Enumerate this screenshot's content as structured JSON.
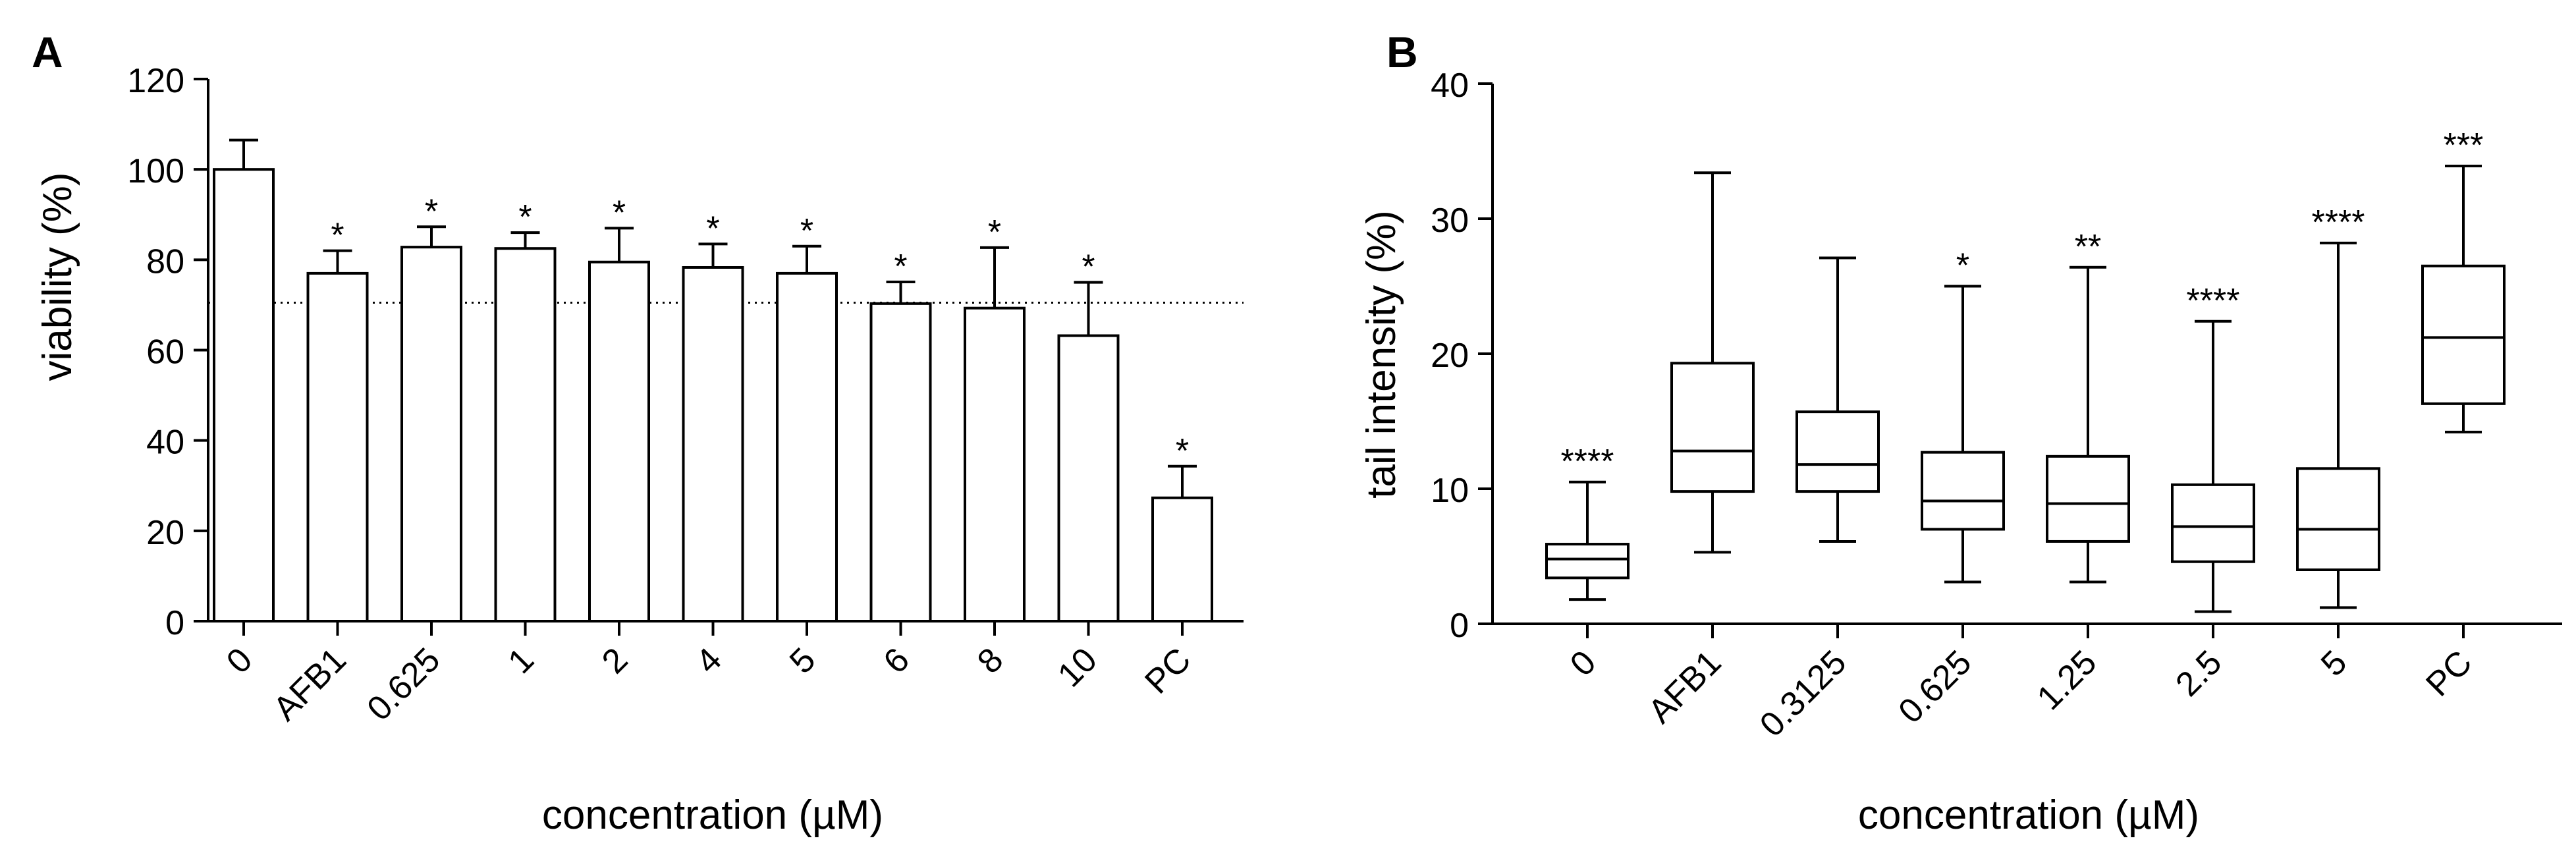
{
  "chart_data": [
    {
      "panel_label": "A",
      "type": "bar",
      "categories": [
        "0",
        "AFB1",
        "0.625",
        "1",
        "2",
        "4",
        "5",
        "6",
        "8",
        "10",
        "PC"
      ],
      "values": [
        100,
        77,
        82.8,
        82.5,
        79.5,
        78.3,
        77,
        70.3,
        69.3,
        63.2,
        27.3
      ],
      "errors": [
        6.5,
        5,
        4.5,
        3.5,
        7.5,
        5.2,
        6,
        4.8,
        13.4,
        11.8,
        7
      ],
      "significance": [
        "",
        "*",
        "*",
        "*",
        "*",
        "*",
        "*",
        "*",
        "*",
        "*",
        "*"
      ],
      "threshold": 70.5,
      "xlabel": "concentration (µM)",
      "ylabel": "viability (%)",
      "ylim": [
        0,
        120
      ],
      "yticks": [
        "0",
        "20",
        "40",
        "60",
        "80",
        "100",
        "120"
      ],
      "colors": {
        "bar_fill": "#ffffff",
        "stroke": "#000000"
      }
    },
    {
      "panel_label": "B",
      "type": "box",
      "categories": [
        "0",
        "AFB1",
        "0.3125",
        "0.625",
        "1.25",
        "2.5",
        "5",
        "PC"
      ],
      "boxes": [
        {
          "min": 1.8,
          "q1": 3.4,
          "median": 4.8,
          "q3": 5.9,
          "max": 10.5
        },
        {
          "min": 5.3,
          "q1": 9.8,
          "median": 12.8,
          "q3": 19.3,
          "max": 33.4
        },
        {
          "min": 6.1,
          "q1": 9.8,
          "median": 11.8,
          "q3": 15.7,
          "max": 27.1
        },
        {
          "min": 3.1,
          "q1": 7.0,
          "median": 9.1,
          "q3": 12.7,
          "max": 25.0
        },
        {
          "min": 3.1,
          "q1": 6.1,
          "median": 8.9,
          "q3": 12.4,
          "max": 26.4
        },
        {
          "min": 0.9,
          "q1": 4.6,
          "median": 7.2,
          "q3": 10.3,
          "max": 22.4
        },
        {
          "min": 1.2,
          "q1": 4.0,
          "median": 7.0,
          "q3": 11.5,
          "max": 28.2
        },
        {
          "min": 14.2,
          "q1": 16.3,
          "median": 21.2,
          "q3": 26.5,
          "max": 33.9
        }
      ],
      "significance": [
        "****",
        "",
        "",
        "*",
        "**",
        "****",
        "****",
        "***"
      ],
      "xlabel": "concentration (µM)",
      "ylabel": "tail intensity (%)",
      "ylim": [
        0,
        40
      ],
      "yticks": [
        "0",
        "10",
        "20",
        "30",
        "40"
      ],
      "colors": {
        "box_fill": "#ffffff",
        "stroke": "#000000"
      }
    }
  ]
}
